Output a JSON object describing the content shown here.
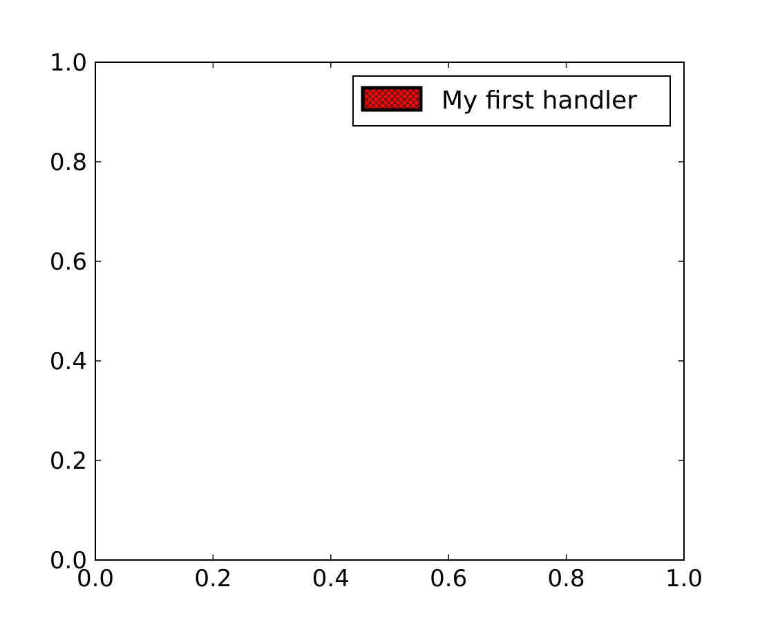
{
  "chart_data": {
    "type": "line",
    "title": "",
    "xlabel": "",
    "ylabel": "",
    "xlim": [
      0.0,
      1.0
    ],
    "ylim": [
      0.0,
      1.0
    ],
    "x_ticks": [
      "0.0",
      "0.2",
      "0.4",
      "0.6",
      "0.8",
      "1.0"
    ],
    "y_ticks": [
      "0.0",
      "0.2",
      "0.4",
      "0.6",
      "0.8",
      "1.0"
    ],
    "grid": false,
    "series": [],
    "legend": {
      "placement": "top-right",
      "entries": [
        {
          "label": "My first handler",
          "fill_color": "#ff0000",
          "edge_color": "#000000",
          "hatch": "xx"
        }
      ]
    }
  }
}
